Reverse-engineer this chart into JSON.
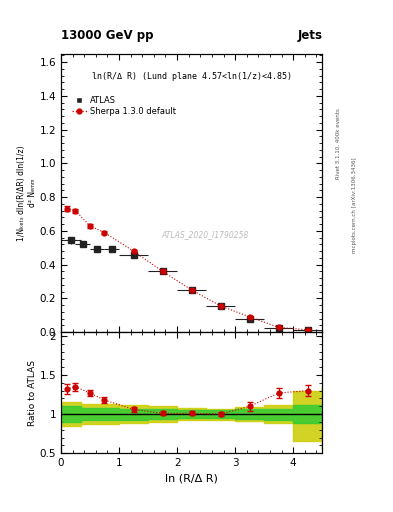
{
  "title_left": "13000 GeV pp",
  "title_right": "Jets",
  "annotation": "ln(R/Δ R) (Lund plane 4.57<ln(1/z)<4.85)",
  "watermark": "ATLAS_2020_I1790258",
  "right_label_top": "Rivet 3.1.10, 400k events",
  "right_label_bottom": "mcplots.cern.ch [arXiv:1306.3436]",
  "ylabel_main_line1": "1",
  "ylabel_ratio": "Ratio to ATLAS",
  "xlabel": "ln (R/Δ R)",
  "atlas_x": [
    0.175,
    0.375,
    0.625,
    0.875,
    1.25,
    1.75,
    2.25,
    2.75,
    3.25,
    3.75,
    4.25
  ],
  "atlas_y": [
    0.545,
    0.525,
    0.495,
    0.495,
    0.455,
    0.36,
    0.25,
    0.155,
    0.075,
    0.025,
    0.01
  ],
  "atlas_yerr": [
    0.02,
    0.015,
    0.015,
    0.015,
    0.015,
    0.015,
    0.012,
    0.01,
    0.008,
    0.005,
    0.003
  ],
  "atlas_xerr": [
    0.175,
    0.125,
    0.125,
    0.125,
    0.25,
    0.25,
    0.25,
    0.25,
    0.25,
    0.25,
    0.25
  ],
  "sherpa_x": [
    0.1,
    0.25,
    0.5,
    0.75,
    1.25,
    1.75,
    2.25,
    2.75,
    3.25,
    3.75,
    4.25
  ],
  "sherpa_y": [
    0.73,
    0.72,
    0.63,
    0.59,
    0.48,
    0.36,
    0.25,
    0.155,
    0.09,
    0.028,
    0.013
  ],
  "sherpa_yerr": [
    0.015,
    0.012,
    0.01,
    0.01,
    0.008,
    0.007,
    0.006,
    0.005,
    0.005,
    0.003,
    0.002
  ],
  "ratio_sherpa_x": [
    0.1,
    0.25,
    0.5,
    0.75,
    1.25,
    1.75,
    2.25,
    2.75,
    3.25,
    3.75,
    4.25
  ],
  "ratio_sherpa_y": [
    1.32,
    1.35,
    1.27,
    1.18,
    1.06,
    1.01,
    1.01,
    1.0,
    1.1,
    1.27,
    1.3
  ],
  "ratio_sherpa_yerr": [
    0.06,
    0.05,
    0.04,
    0.04,
    0.03,
    0.025,
    0.025,
    0.025,
    0.06,
    0.06,
    0.07
  ],
  "band_x": [
    0.0,
    0.35,
    1.0,
    1.5,
    2.0,
    2.5,
    3.0,
    3.5,
    4.0,
    4.5
  ],
  "green_upper": [
    1.1,
    1.08,
    1.07,
    1.06,
    1.05,
    1.05,
    1.06,
    1.07,
    1.12,
    1.12
  ],
  "green_lower": [
    0.9,
    0.92,
    0.93,
    0.94,
    0.95,
    0.95,
    0.94,
    0.93,
    0.88,
    0.88
  ],
  "yellow_upper": [
    1.15,
    1.13,
    1.12,
    1.1,
    1.08,
    1.07,
    1.09,
    1.12,
    1.3,
    1.35
  ],
  "yellow_lower": [
    0.85,
    0.87,
    0.88,
    0.9,
    0.92,
    0.93,
    0.91,
    0.88,
    0.65,
    0.55
  ],
  "xlim": [
    0.0,
    4.5
  ],
  "ylim_main": [
    0.0,
    1.65
  ],
  "ylim_ratio": [
    0.5,
    2.05
  ],
  "color_atlas": "#222222",
  "color_sherpa": "#cc0000",
  "color_green": "#33cc33",
  "color_yellow": "#cccc00",
  "bgcolor": "#ffffff"
}
